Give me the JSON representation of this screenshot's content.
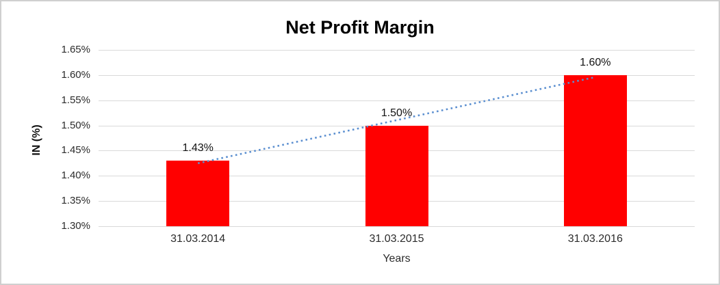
{
  "chart_data": {
    "type": "bar",
    "title": "Net Profit Margin",
    "xlabel": "Years",
    "ylabel": "IN (%)",
    "categories": [
      "31.03.2014",
      "31.03.2015",
      "31.03.2016"
    ],
    "values": [
      1.43,
      1.5,
      1.6
    ],
    "data_labels": [
      "1.43%",
      "1.50%",
      "1.60%"
    ],
    "yticks": [
      {
        "value": 1.3,
        "label": "1.30%"
      },
      {
        "value": 1.35,
        "label": "1.35%"
      },
      {
        "value": 1.4,
        "label": "1.40%"
      },
      {
        "value": 1.45,
        "label": "1.45%"
      },
      {
        "value": 1.5,
        "label": "1.50%"
      },
      {
        "value": 1.55,
        "label": "1.55%"
      },
      {
        "value": 1.6,
        "label": "1.60%"
      },
      {
        "value": 1.65,
        "label": "1.65%"
      }
    ],
    "ylim": [
      1.3,
      1.65
    ],
    "grid": true,
    "legend": "none",
    "colors": {
      "bar": "#ff0000",
      "gridline": "#d9d9d9",
      "trendline": "#5b8fd0",
      "frame_border": "#cfcfcf"
    },
    "trendline": {
      "type": "linear",
      "style": "dotted",
      "start_value": 1.425,
      "end_value": 1.596
    }
  }
}
